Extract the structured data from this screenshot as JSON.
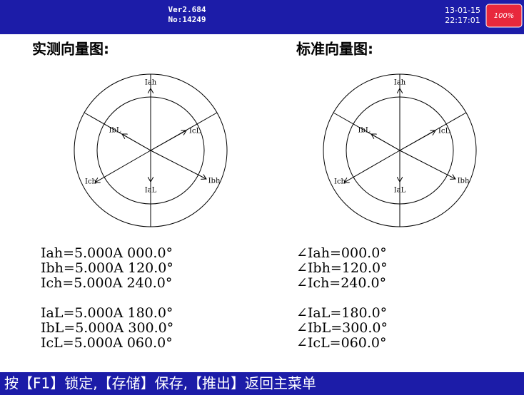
{
  "header": {
    "version": "Ver2.684",
    "serial": "No:14249",
    "date": "13-01-15",
    "time": "22:17:01",
    "battery": "100%"
  },
  "panels": [
    {
      "title": "实测向量图:",
      "labels": [
        "Iah",
        "IbL",
        "IcL",
        "Ich",
        "Ibh",
        "IaL"
      ],
      "readings": [
        "Iah=5.000A 000.0°",
        "Ibh=5.000A 120.0°",
        "Ich=5.000A 240.0°",
        "IaL=5.000A 180.0°",
        "IbL=5.000A 300.0°",
        "IcL=5.000A 060.0°"
      ]
    },
    {
      "title": "标准向量图:",
      "labels": [
        "Iah",
        "IbL",
        "IcL",
        "Ich",
        "Ibh",
        "IaL"
      ],
      "readings": [
        "∠Iah=000.0°",
        "∠Ibh=120.0°",
        "∠Ich=240.0°",
        "∠IaL=180.0°",
        "∠IbL=300.0°",
        "∠IcL=060.0°"
      ]
    }
  ],
  "footer": "按【F1】锁定,【存储】保存,【推出】返回主菜单"
}
